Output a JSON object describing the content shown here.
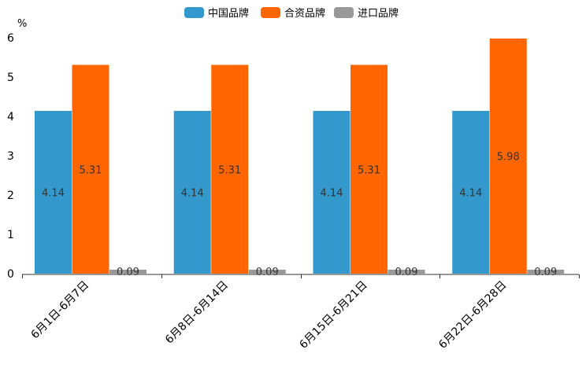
{
  "chart_data": {
    "type": "bar",
    "unit_label": "%",
    "categories": [
      "6月1日-6月7日",
      "6月8日-6月14日",
      "6月15日-6月21日",
      "6月22日-6月28日"
    ],
    "series": [
      {
        "name": "中国品牌",
        "color": "#3398cc",
        "values": [
          4.14,
          4.14,
          4.14,
          4.14
        ]
      },
      {
        "name": "合资品牌",
        "color": "#ff6600",
        "values": [
          5.31,
          5.31,
          5.31,
          5.98
        ]
      },
      {
        "name": "进口品牌",
        "color": "#999999",
        "values": [
          0.09,
          0.09,
          0.09,
          0.09
        ]
      }
    ],
    "ylim": [
      0,
      6
    ],
    "yticks": [
      0,
      1,
      2,
      3,
      4,
      5,
      6
    ],
    "legend_position": "top-center",
    "grid": false
  }
}
